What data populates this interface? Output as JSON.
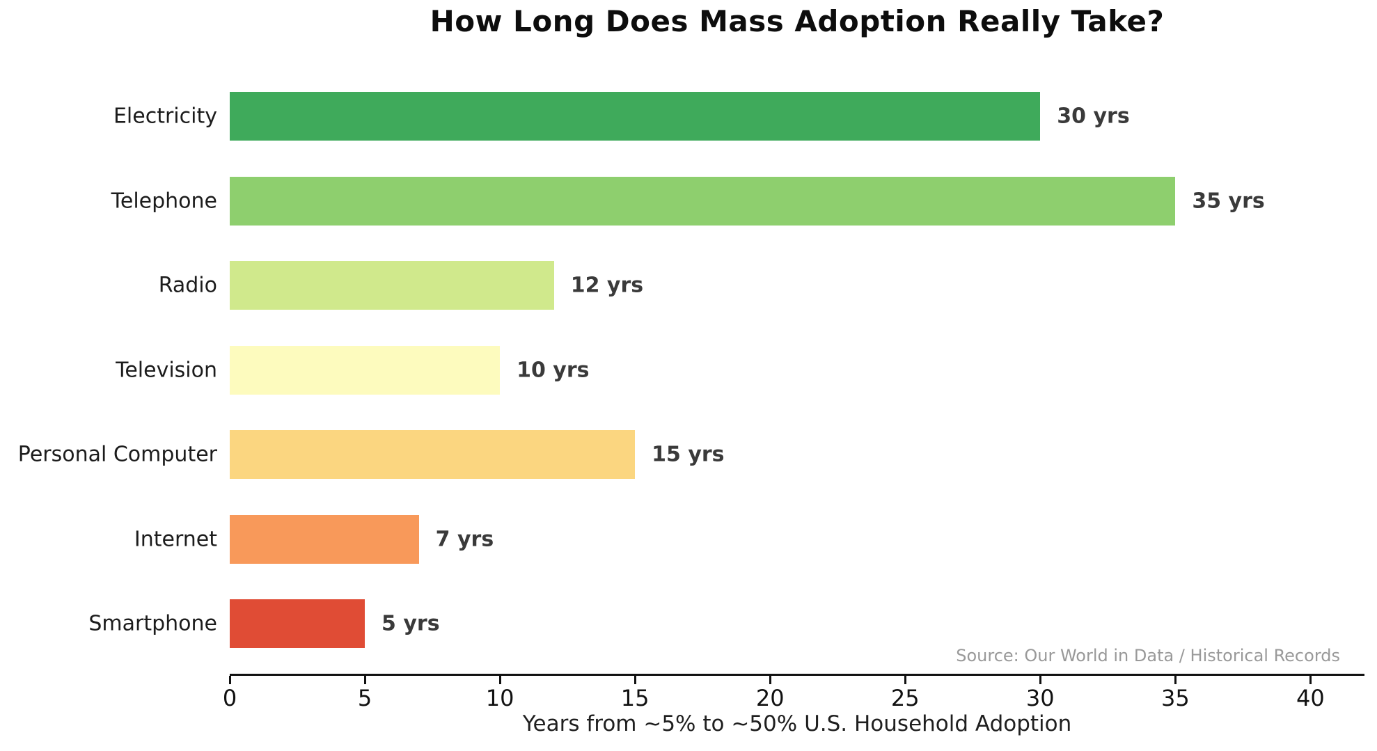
{
  "title": "How Long Does Mass Adoption Really Take?",
  "source": "Source: Our World in Data / Historical Records",
  "chart_data": {
    "type": "bar",
    "orientation": "horizontal",
    "title": "How Long Does Mass Adoption Really Take?",
    "xlabel": "Years from ~5% to ~50% U.S. Household Adoption",
    "ylabel": "",
    "categories": [
      "Electricity",
      "Telephone",
      "Radio",
      "Television",
      "Personal Computer",
      "Internet",
      "Smartphone"
    ],
    "values": [
      30,
      35,
      12,
      10,
      15,
      7,
      5
    ],
    "value_labels": [
      "30 yrs",
      "35 yrs",
      "12 yrs",
      "10 yrs",
      "15 yrs",
      "7 yrs",
      "5 yrs"
    ],
    "bar_colors": [
      "#3faa5b",
      "#8ecf6e",
      "#d0e98c",
      "#fdfbbe",
      "#fbd680",
      "#f8995a",
      "#e04c35"
    ],
    "xticks": [
      0,
      5,
      10,
      15,
      20,
      25,
      30,
      35,
      40
    ],
    "xtick_labels": [
      "0",
      "5",
      "10",
      "15",
      "20",
      "25",
      "30",
      "35",
      "40"
    ],
    "xlim": [
      0,
      42
    ],
    "grid": false,
    "legend": "none",
    "annotation": "Source: Our World in Data / Historical Records"
  },
  "colors": {
    "background": "#ffffff",
    "axis": "#111111",
    "category_label": "#1c1c1c",
    "value_label": "#3a3a3a",
    "source_text": "#999999",
    "title_text": "#0d0d0d"
  }
}
